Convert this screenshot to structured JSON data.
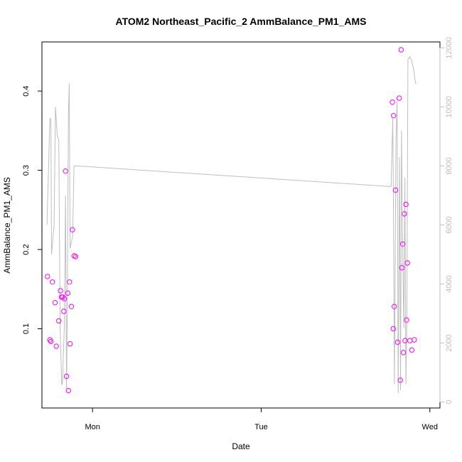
{
  "chart_data": {
    "type": "scatter",
    "title": "ATOM2 Northeast_Pacific_2 AmmBalance_PM1_AMS",
    "xlabel": "Date",
    "ylabel": "AmmBalance_PM1_AMS",
    "x_ticks": [
      "Mon",
      "Tue",
      "Wed"
    ],
    "x_tick_values": [
      1.0,
      2.0,
      3.0
    ],
    "xlim": [
      0.7,
      3.06
    ],
    "ylim": [
      0.0,
      0.462
    ],
    "y_ticks": [
      0.1,
      0.2,
      0.3,
      0.4
    ],
    "y_tick_labels": [
      "0.1",
      "0.2",
      "0.3",
      "0.4"
    ],
    "y2lim": [
      -200,
      12200
    ],
    "y2_ticks": [
      0,
      2000,
      4000,
      6000,
      8000,
      10000,
      12000
    ],
    "y2_tick_labels": [
      "0",
      "2000",
      "4000",
      "6000",
      "8000",
      "10000",
      "12000"
    ],
    "grid": false,
    "legend": "none",
    "colors": {
      "points": "#ff00ff",
      "line": "#bebebe",
      "axes": "#000000",
      "right_axis": "#bebebe"
    },
    "series": [
      {
        "type": "scatter",
        "axis": "left",
        "x": [
          0.733,
          0.747,
          0.753,
          0.762,
          0.778,
          0.785,
          0.8,
          0.81,
          0.816,
          0.823,
          0.83,
          0.833,
          0.84,
          0.846,
          0.853,
          0.857,
          0.863,
          0.867,
          0.875,
          0.881,
          0.891,
          0.9,
          2.778,
          2.783,
          2.785,
          2.789,
          2.797,
          2.809,
          2.818,
          2.825,
          2.83,
          2.834,
          2.839,
          2.843,
          2.849,
          2.853,
          2.858,
          2.862,
          2.867,
          2.882,
          2.893,
          2.908
        ],
        "y": [
          0.166,
          0.086,
          0.084,
          0.159,
          0.133,
          0.078,
          0.11,
          0.148,
          0.14,
          0.14,
          0.122,
          0.138,
          0.299,
          0.04,
          0.145,
          0.022,
          0.159,
          0.081,
          0.128,
          0.225,
          0.192,
          0.191,
          0.386,
          0.1,
          0.369,
          0.128,
          0.275,
          0.083,
          0.391,
          0.035,
          0.452,
          0.177,
          0.207,
          0.07,
          0.245,
          0.085,
          0.257,
          0.111,
          0.183,
          0.085,
          0.073,
          0.086
        ]
      },
      {
        "type": "line",
        "axis": "right",
        "x": [
          0.73,
          0.747,
          0.753,
          0.757,
          0.772,
          0.78,
          0.791,
          0.8,
          0.808,
          0.817,
          0.821,
          0.833,
          0.84,
          0.846,
          0.85,
          0.857,
          0.862,
          0.867,
          0.873,
          0.882,
          0.89,
          0.9,
          0.907,
          2.77,
          2.78,
          2.784,
          2.79,
          2.799,
          2.806,
          2.812,
          2.82,
          2.826,
          2.832,
          2.838,
          2.846,
          2.852,
          2.858,
          2.864,
          2.87,
          2.88,
          2.89,
          2.903,
          2.915,
          2.922
        ],
        "y": [
          6000,
          9600,
          9600,
          5000,
          6000,
          10000,
          9000,
          8900,
          2500,
          600,
          600,
          2600,
          7000,
          400,
          3000,
          9800,
          10800,
          5200,
          5400,
          5600,
          8000,
          8000,
          8000,
          7300,
          9600,
          6800,
          600,
          8800,
          10200,
          300,
          8300,
          400,
          9200,
          5500,
          2500,
          7600,
          600,
          3100,
          11600,
          11700,
          11600,
          11300,
          10800,
          10800
        ]
      }
    ]
  }
}
